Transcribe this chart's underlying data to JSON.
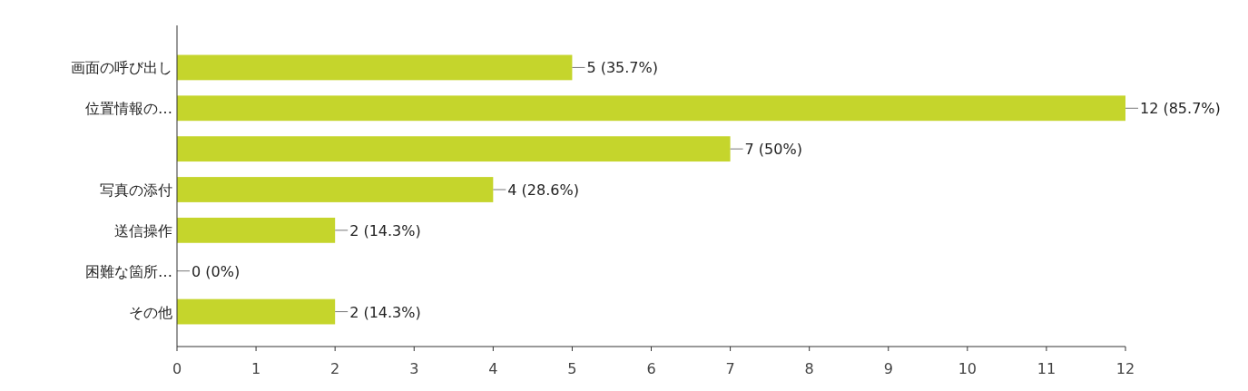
{
  "chart_data": {
    "type": "bar",
    "orientation": "horizontal",
    "categories": [
      "画面の呼び出し",
      "位置情報の…",
      null,
      "写真の添付",
      "送信操作",
      "困難な箇所…",
      "その他"
    ],
    "values": [
      5,
      12,
      7,
      4,
      2,
      0,
      2
    ],
    "value_labels": [
      "5 (35.7%)",
      "12 (85.7%)",
      "7 (50%)",
      "4 (28.6%)",
      "2 (14.3%)",
      "0 (0%)",
      "2 (14.3%)"
    ],
    "color": "#c5d52c",
    "xlim": [
      0,
      12
    ],
    "xticks": [
      0,
      1,
      2,
      3,
      4,
      5,
      6,
      7,
      8,
      9,
      10,
      11,
      12
    ]
  }
}
